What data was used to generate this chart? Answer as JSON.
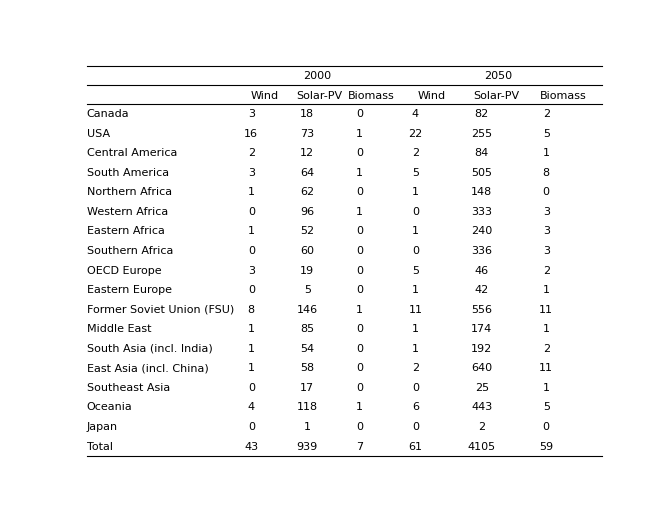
{
  "regions": [
    "Canada",
    "USA",
    "Central America",
    "South America",
    "Northern Africa",
    "Western Africa",
    "Eastern Africa",
    "Southern Africa",
    "OECD Europe",
    "Eastern Europe",
    "Former Soviet Union (FSU)",
    "Middle East",
    "South Asia (incl. India)",
    "East Asia (incl. China)",
    "Southeast Asia",
    "Oceania",
    "Japan",
    "Total"
  ],
  "year_2000": {
    "Wind": [
      3,
      16,
      2,
      3,
      1,
      0,
      1,
      0,
      3,
      0,
      8,
      1,
      1,
      1,
      0,
      4,
      0,
      43
    ],
    "Solar-PV": [
      18,
      73,
      12,
      64,
      62,
      96,
      52,
      60,
      19,
      5,
      146,
      85,
      54,
      58,
      17,
      118,
      1,
      939
    ],
    "Biomass": [
      0,
      1,
      0,
      1,
      0,
      1,
      0,
      0,
      0,
      0,
      1,
      0,
      0,
      0,
      0,
      1,
      0,
      7
    ]
  },
  "year_2050": {
    "Wind": [
      4,
      22,
      2,
      5,
      1,
      0,
      1,
      0,
      5,
      1,
      11,
      1,
      1,
      2,
      0,
      6,
      0,
      61
    ],
    "Solar-PV": [
      82,
      255,
      84,
      505,
      148,
      333,
      240,
      336,
      46,
      42,
      556,
      174,
      192,
      640,
      25,
      443,
      2,
      4105
    ],
    "Biomass": [
      2,
      5,
      1,
      8,
      0,
      3,
      3,
      3,
      2,
      1,
      11,
      1,
      2,
      11,
      1,
      5,
      0,
      59
    ]
  },
  "col_headers_year": [
    "2000",
    "2050"
  ],
  "col_headers_sub": [
    "Wind",
    "Solar-PV",
    "Biomass",
    "Wind",
    "Solar-PV",
    "Biomass"
  ],
  "bg_color": "#ffffff",
  "text_color": "#000000",
  "font_size": 8.0,
  "header_font_size": 8.0
}
